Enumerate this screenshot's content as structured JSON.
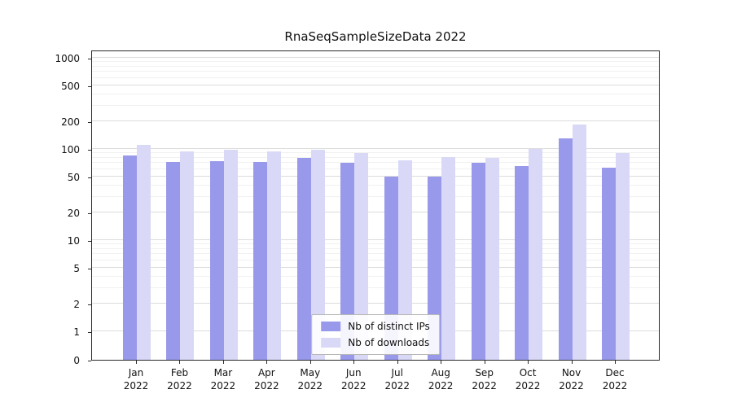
{
  "title": "RnaSeqSampleSizeData 2022",
  "chart_data": {
    "type": "bar",
    "title": "RnaSeqSampleSizeData 2022",
    "categories": [
      "Jan 2022",
      "Feb 2022",
      "Mar 2022",
      "Apr 2022",
      "May 2022",
      "Jun 2022",
      "Jul 2022",
      "Aug 2022",
      "Sep 2022",
      "Oct 2022",
      "Nov 2022",
      "Dec 2022"
    ],
    "series": [
      {
        "name": "Nb of distinct IPs",
        "color": "#9999eb",
        "values": [
          85,
          72,
          73,
          72,
          80,
          70,
          50,
          50,
          70,
          65,
          130,
          62
        ]
      },
      {
        "name": "Nb of downloads",
        "color": "#d9d9f7",
        "values": [
          110,
          95,
          98,
          95,
          97,
          90,
          75,
          82,
          80,
          100,
          185,
          90
        ]
      }
    ],
    "yscale": "symlog",
    "yticks": [
      0,
      1,
      2,
      5,
      10,
      20,
      50,
      100,
      200,
      500,
      1000
    ],
    "ylim": [
      0,
      1000
    ],
    "xlabel": "",
    "ylabel": "",
    "grid": true,
    "legend_position": "lower center"
  }
}
